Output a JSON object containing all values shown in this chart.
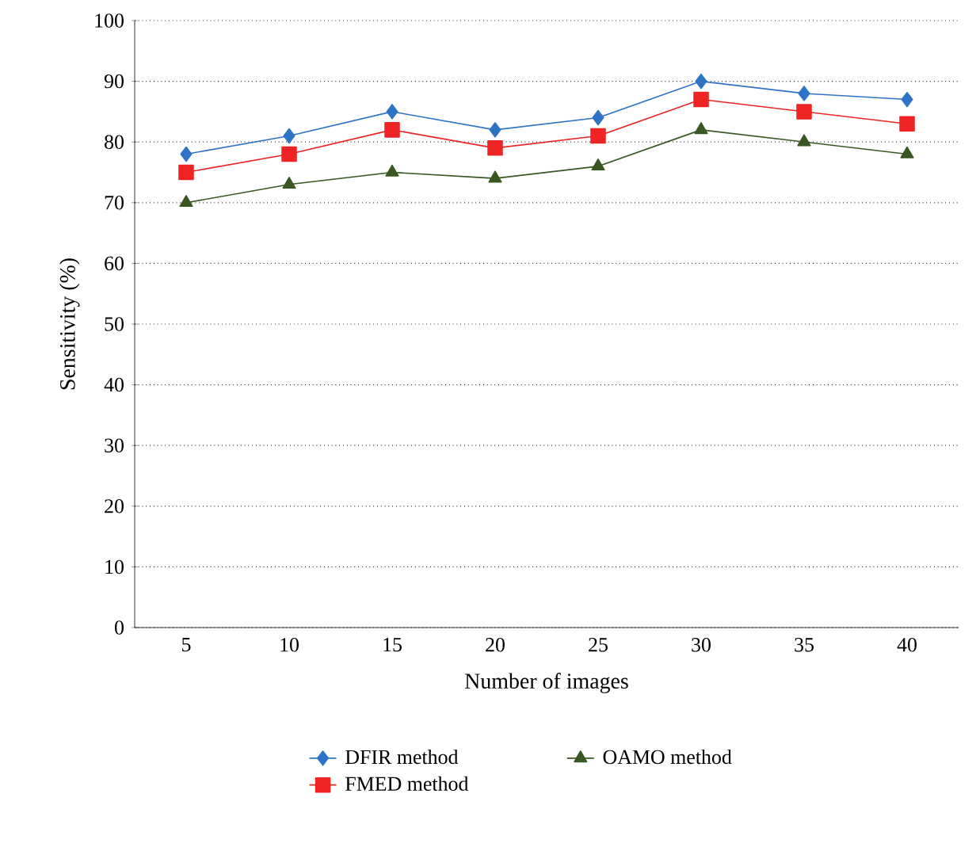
{
  "chart_data": {
    "type": "line",
    "xlabel": "Number of images",
    "ylabel": "Sensitivity (%)",
    "categories": [
      "5",
      "10",
      "15",
      "20",
      "25",
      "30",
      "35",
      "40"
    ],
    "series": [
      {
        "name": "DFIR method",
        "color": "#2e74c6",
        "marker": "diamond",
        "values": [
          78,
          81,
          85,
          82,
          84,
          90,
          88,
          87
        ]
      },
      {
        "name": "FMED method",
        "color": "#ee2424",
        "marker": "square",
        "values": [
          75,
          78,
          82,
          79,
          81,
          87,
          85,
          83
        ]
      },
      {
        "name": "OAMO method",
        "color": "#385723",
        "marker": "triangle",
        "values": [
          70,
          73,
          75,
          74,
          76,
          82,
          80,
          78
        ]
      }
    ],
    "ylim": [
      0,
      100
    ],
    "yticks": [
      0,
      10,
      20,
      30,
      40,
      50,
      60,
      70,
      80,
      90,
      100
    ],
    "grid": "y",
    "legend": "bottom",
    "line_style": "solid"
  }
}
